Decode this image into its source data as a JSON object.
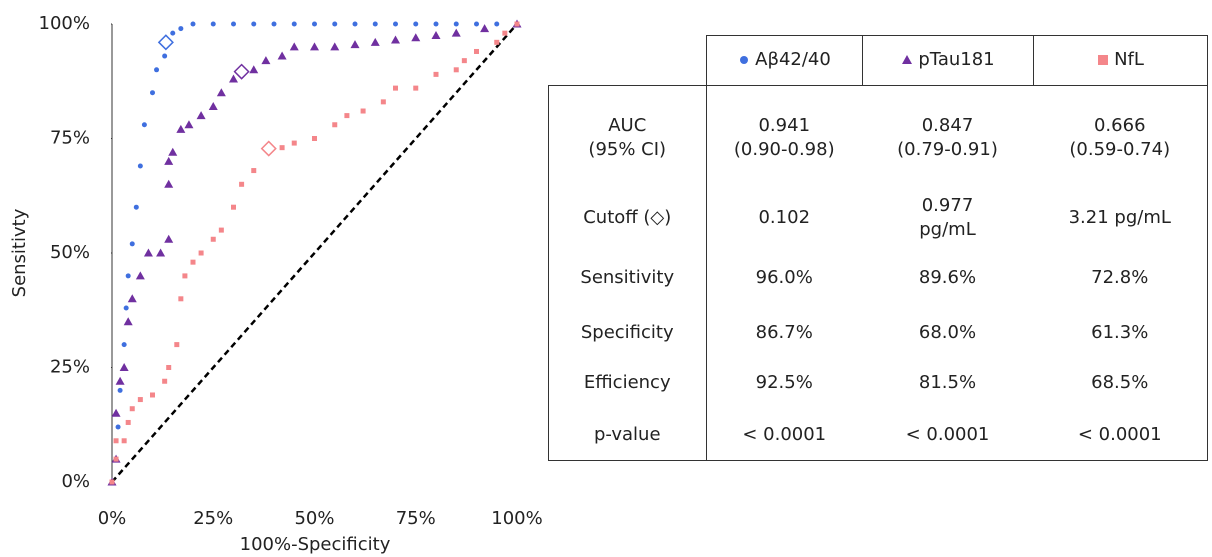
{
  "chart_data": {
    "type": "scatter",
    "x_label": "100%-Specificity",
    "y_label": "Sensitivty",
    "xlim": [
      0,
      100
    ],
    "ylim": [
      0,
      100
    ],
    "xticks": [
      {
        "value": 0,
        "label": "0%"
      },
      {
        "value": 25,
        "label": "25%"
      },
      {
        "value": 50,
        "label": "50%"
      },
      {
        "value": 75,
        "label": "75%"
      },
      {
        "value": 100,
        "label": "100%"
      }
    ],
    "yticks": [
      {
        "value": 0,
        "label": "0%"
      },
      {
        "value": 25,
        "label": "25%"
      },
      {
        "value": 50,
        "label": "50%"
      },
      {
        "value": 75,
        "label": "75%"
      },
      {
        "value": 100,
        "label": "100%"
      }
    ],
    "series": [
      {
        "name": "Aβ42/40",
        "color": "#3f6fdf",
        "marker": "circle",
        "cutoff": [
          13.3,
          96
        ],
        "x": [
          0,
          1,
          1.5,
          2,
          3,
          3.5,
          4,
          5,
          6,
          7,
          8,
          10,
          11,
          13,
          15,
          17,
          20,
          25,
          30,
          35,
          40,
          45,
          50,
          55,
          60,
          65,
          70,
          75,
          80,
          85,
          90,
          95,
          100
        ],
        "values": [
          0,
          5,
          12,
          20,
          30,
          38,
          45,
          52,
          60,
          69,
          78,
          85,
          90,
          93,
          98,
          99,
          100,
          100,
          100,
          100,
          100,
          100,
          100,
          100,
          100,
          100,
          100,
          100,
          100,
          100,
          100,
          100,
          100
        ]
      },
      {
        "name": "pTau181",
        "color": "#7030a0",
        "marker": "triangle",
        "cutoff": [
          32,
          89.6
        ],
        "x": [
          0,
          1,
          1,
          2,
          3,
          4,
          5,
          7,
          9,
          12,
          14,
          14,
          14,
          15,
          17,
          19,
          22,
          25,
          27,
          30,
          35,
          38,
          42,
          45,
          50,
          55,
          60,
          65,
          70,
          75,
          80,
          85,
          92,
          100
        ],
        "values": [
          0,
          5,
          15,
          22,
          25,
          35,
          40,
          45,
          50,
          50,
          53,
          65,
          70,
          72,
          77,
          78,
          80,
          82,
          85,
          88,
          90,
          92,
          93,
          95,
          95,
          95,
          95.5,
          96,
          96.5,
          97,
          97.5,
          98,
          99,
          100
        ]
      },
      {
        "name": "NfL",
        "color": "#f4868a",
        "marker": "square",
        "cutoff": [
          38.7,
          72.8
        ],
        "x": [
          0,
          1,
          1,
          3,
          4,
          5,
          7,
          10,
          13,
          14,
          16,
          17,
          18,
          20,
          22,
          25,
          27,
          30,
          32,
          35,
          42,
          45,
          50,
          55,
          58,
          62,
          67,
          70,
          75,
          80,
          85,
          87,
          90,
          95,
          97,
          100
        ],
        "values": [
          0,
          5,
          9,
          9,
          13,
          16,
          18,
          19,
          22,
          25,
          30,
          40,
          45,
          48,
          50,
          53,
          55,
          60,
          65,
          68,
          73,
          74,
          75,
          78,
          80,
          81,
          83,
          86,
          86,
          89,
          90,
          92,
          94,
          96,
          98,
          100
        ]
      }
    ]
  },
  "table": {
    "rows": [
      [
        "AUC\n(95% CI)",
        "0.941\n(0.90-0.98)",
        "0.847\n(0.79-0.91)",
        "0.666\n(0.59-0.74)"
      ],
      [
        "Cutoff (◇)",
        "0.102",
        "0.977\npg/mL",
        "3.21 pg/mL"
      ],
      [
        "Sensitivity",
        "96.0%",
        "89.6%",
        "72.8%"
      ],
      [
        "Specificity",
        "86.7%",
        "68.0%",
        "61.3%"
      ],
      [
        "Efficiency",
        "92.5%",
        "81.5%",
        "68.5%"
      ],
      [
        "p-value",
        "< 0.0001",
        "< 0.0001",
        "< 0.0001"
      ]
    ]
  }
}
